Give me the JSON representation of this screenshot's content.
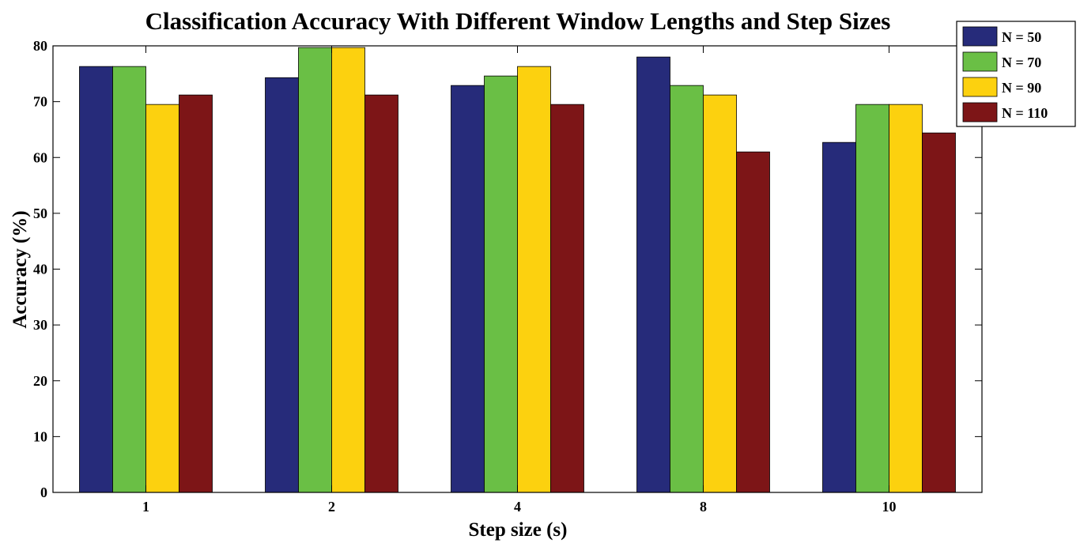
{
  "chart_data": {
    "type": "bar",
    "title": "Classification Accuracy With Different Window Lengths and Step Sizes",
    "xlabel": "Step size (s)",
    "ylabel": "Accuracy (%)",
    "categories": [
      "1",
      "2",
      "4",
      "8",
      "10"
    ],
    "ylim": [
      0,
      80
    ],
    "yticks": [
      0,
      10,
      20,
      30,
      40,
      50,
      60,
      70,
      80
    ],
    "grid": false,
    "legend_position": "top-right",
    "series": [
      {
        "name": "N = 50",
        "color": "#262b7a",
        "values": [
          76.3,
          74.3,
          72.9,
          78.0,
          62.7
        ]
      },
      {
        "name": "N = 70",
        "color": "#6abf45",
        "values": [
          76.3,
          79.7,
          74.6,
          72.9,
          69.5
        ]
      },
      {
        "name": "N = 90",
        "color": "#fcd10f",
        "values": [
          69.5,
          79.7,
          76.3,
          71.2,
          69.5
        ]
      },
      {
        "name": "N = 110",
        "color": "#7d1517",
        "values": [
          71.2,
          71.2,
          69.5,
          61.0,
          64.4
        ]
      }
    ]
  }
}
